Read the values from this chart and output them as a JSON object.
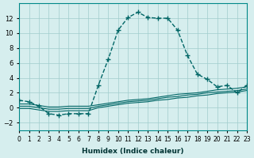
{
  "xlabel": "Humidex (Indice chaleur)",
  "bg_color": "#d6eeee",
  "grid_color": "#a0cccc",
  "line_color": "#006666",
  "xlim": [
    0,
    23
  ],
  "ylim": [
    -3,
    14
  ],
  "x": [
    0,
    1,
    2,
    3,
    4,
    5,
    6,
    7,
    8,
    9,
    10,
    11,
    12,
    13,
    14,
    15,
    16,
    17,
    18,
    19,
    20,
    21,
    22,
    23
  ],
  "y_main": [
    1,
    0.8,
    0.2,
    -0.8,
    -1.0,
    -0.8,
    -0.8,
    -0.8,
    3.0,
    6.5,
    10.4,
    12.1,
    12.8,
    12.1,
    12.0,
    12.0,
    10.4,
    7.0,
    4.5,
    3.8,
    2.8,
    3.0,
    2.0,
    3.0
  ],
  "y_line1": [
    0.5,
    0.5,
    0.3,
    0.1,
    0.1,
    0.2,
    0.2,
    0.2,
    0.4,
    0.6,
    0.8,
    1.0,
    1.1,
    1.2,
    1.4,
    1.6,
    1.8,
    1.9,
    2.0,
    2.2,
    2.4,
    2.5,
    2.6,
    2.8
  ],
  "y_line2": [
    0.2,
    0.2,
    0.0,
    -0.2,
    -0.2,
    -0.1,
    -0.1,
    -0.1,
    0.2,
    0.4,
    0.6,
    0.8,
    0.9,
    1.0,
    1.2,
    1.4,
    1.5,
    1.7,
    1.8,
    2.0,
    2.1,
    2.2,
    2.3,
    2.5
  ],
  "y_line3": [
    -0.1,
    -0.1,
    -0.3,
    -0.5,
    -0.5,
    -0.4,
    -0.4,
    -0.4,
    0.0,
    0.2,
    0.4,
    0.6,
    0.7,
    0.8,
    1.0,
    1.1,
    1.3,
    1.4,
    1.6,
    1.7,
    1.9,
    2.0,
    2.1,
    2.3
  ],
  "yticks": [
    -2,
    0,
    2,
    4,
    6,
    8,
    10,
    12
  ],
  "xtick_labels": [
    "0",
    "1",
    "2",
    "3",
    "4",
    "5",
    "6",
    "7",
    "8",
    "9",
    "10",
    "11",
    "12",
    "13",
    "14",
    "15",
    "16",
    "17",
    "18",
    "19",
    "20",
    "21",
    "22",
    "23"
  ]
}
